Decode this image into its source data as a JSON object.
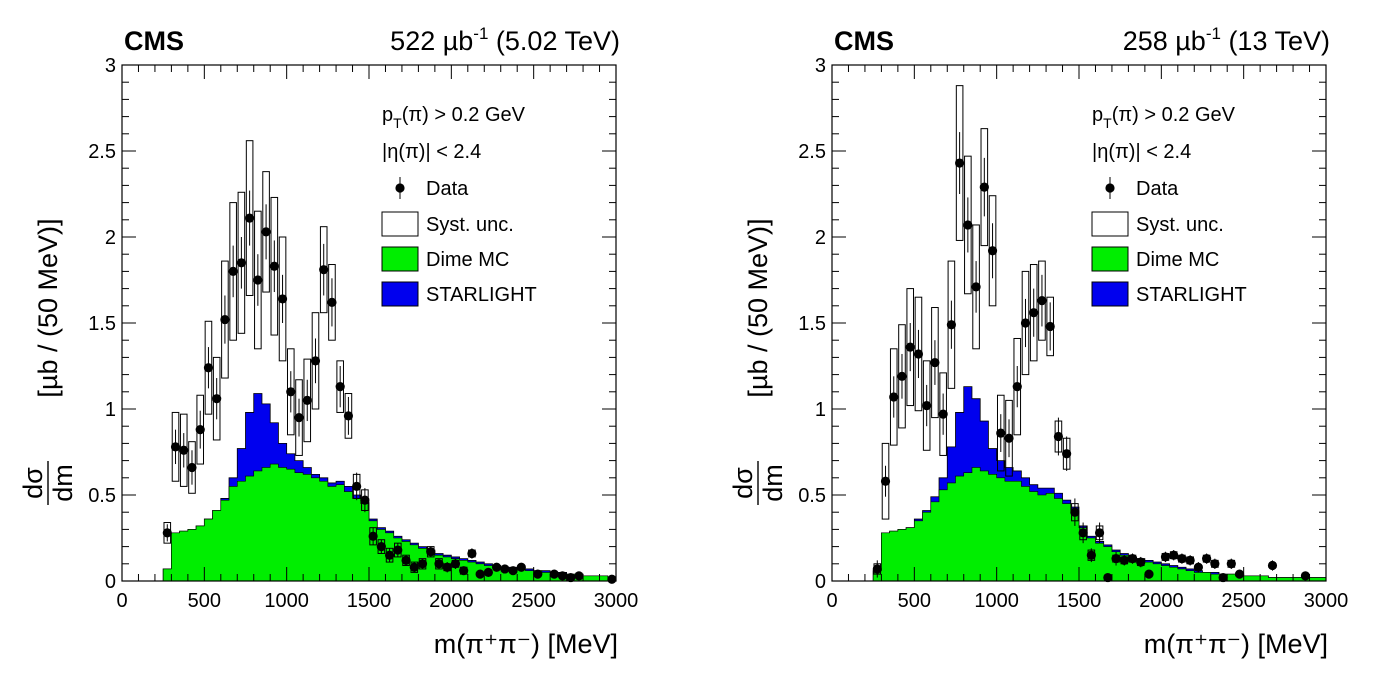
{
  "chart_data": [
    {
      "type": "histogram",
      "experiment": "CMS",
      "luminosity": "522 µb",
      "luminosity_exponent": "-1",
      "energy": "(5.02 TeV)",
      "xlabel": "m(π⁺π⁻) [MeV]",
      "ylabel_numerator": "dσ",
      "ylabel_denominator": "dm",
      "ylabel_units": "[µb / (50 MeV)]",
      "xlim": [
        0,
        3000
      ],
      "ylim": [
        0,
        3
      ],
      "xticks": [
        "0",
        "500",
        "1000",
        "1500",
        "2000",
        "2500",
        "3000"
      ],
      "yticks": [
        "0",
        "0.5",
        "1",
        "1.5",
        "2",
        "2.5",
        "3"
      ],
      "cuts": [
        "p_T(π) > 0.2 GeV",
        "|η(π)| < 2.4"
      ],
      "legend": {
        "position": "top-right",
        "entries": [
          {
            "label": "Data",
            "style": "marker"
          },
          {
            "label": "Syst. unc.",
            "style": "box",
            "color": "#ffffff"
          },
          {
            "label": "Dime MC",
            "style": "fill",
            "color": "#00ee00"
          },
          {
            "label": "STARLIGHT",
            "style": "fill",
            "color": "#0000ee"
          }
        ]
      },
      "mc_bins": {
        "bin_width": 50,
        "edges_start": 250,
        "dime": [
          0.07,
          0.28,
          0.29,
          0.3,
          0.32,
          0.36,
          0.41,
          0.47,
          0.55,
          0.58,
          0.61,
          0.64,
          0.66,
          0.68,
          0.66,
          0.65,
          0.63,
          0.62,
          0.6,
          0.58,
          0.55,
          0.56,
          0.52,
          0.48,
          0.45,
          0.35,
          0.3,
          0.28,
          0.25,
          0.23,
          0.21,
          0.19,
          0.17,
          0.15,
          0.14,
          0.13,
          0.12,
          0.11,
          0.1,
          0.09,
          0.08,
          0.08,
          0.07,
          0.07,
          0.06,
          0.06,
          0.05,
          0.05,
          0.04,
          0.04,
          0.04,
          0.03,
          0.03,
          0.03,
          0.02
        ],
        "total": [
          0.07,
          0.28,
          0.29,
          0.3,
          0.32,
          0.36,
          0.41,
          0.48,
          0.6,
          0.77,
          0.98,
          1.09,
          1.03,
          0.92,
          0.8,
          0.74,
          0.7,
          0.66,
          0.62,
          0.6,
          0.57,
          0.58,
          0.55,
          0.5,
          0.46,
          0.36,
          0.31,
          0.29,
          0.26,
          0.24,
          0.22,
          0.2,
          0.18,
          0.16,
          0.15,
          0.14,
          0.13,
          0.12,
          0.11,
          0.1,
          0.09,
          0.08,
          0.08,
          0.07,
          0.07,
          0.06,
          0.06,
          0.05,
          0.05,
          0.04,
          0.04,
          0.03,
          0.03,
          0.03,
          0.02
        ]
      },
      "data_points": [
        {
          "x": 275,
          "y": 0.28,
          "err": 0.05,
          "syst": 0.06
        },
        {
          "x": 325,
          "y": 0.78,
          "err": 0.1,
          "syst": 0.2
        },
        {
          "x": 375,
          "y": 0.76,
          "err": 0.1,
          "syst": 0.21
        },
        {
          "x": 425,
          "y": 0.66,
          "err": 0.1,
          "syst": 0.15
        },
        {
          "x": 475,
          "y": 0.88,
          "err": 0.11,
          "syst": 0.2
        },
        {
          "x": 525,
          "y": 1.24,
          "err": 0.12,
          "syst": 0.27
        },
        {
          "x": 575,
          "y": 1.06,
          "err": 0.12,
          "syst": 0.24
        },
        {
          "x": 625,
          "y": 1.52,
          "err": 0.14,
          "syst": 0.34
        },
        {
          "x": 675,
          "y": 1.8,
          "err": 0.15,
          "syst": 0.4
        },
        {
          "x": 725,
          "y": 1.85,
          "err": 0.15,
          "syst": 0.41
        },
        {
          "x": 775,
          "y": 2.11,
          "err": 0.16,
          "syst": 0.45
        },
        {
          "x": 825,
          "y": 1.75,
          "err": 0.15,
          "syst": 0.4
        },
        {
          "x": 875,
          "y": 2.03,
          "err": 0.16,
          "syst": 0.35
        },
        {
          "x": 925,
          "y": 1.83,
          "err": 0.15,
          "syst": 0.4
        },
        {
          "x": 975,
          "y": 1.64,
          "err": 0.14,
          "syst": 0.36
        },
        {
          "x": 1025,
          "y": 1.1,
          "err": 0.12,
          "syst": 0.25
        },
        {
          "x": 1075,
          "y": 0.95,
          "err": 0.11,
          "syst": 0.22
        },
        {
          "x": 1125,
          "y": 1.05,
          "err": 0.12,
          "syst": 0.24
        },
        {
          "x": 1175,
          "y": 1.28,
          "err": 0.13,
          "syst": 0.28
        },
        {
          "x": 1225,
          "y": 1.81,
          "err": 0.15,
          "syst": 0.25
        },
        {
          "x": 1275,
          "y": 1.62,
          "err": 0.14,
          "syst": 0.22
        },
        {
          "x": 1325,
          "y": 1.13,
          "err": 0.12,
          "syst": 0.15
        },
        {
          "x": 1375,
          "y": 0.96,
          "err": 0.11,
          "syst": 0.13
        },
        {
          "x": 1425,
          "y": 0.55,
          "err": 0.08,
          "syst": 0.07
        },
        {
          "x": 1475,
          "y": 0.47,
          "err": 0.07,
          "syst": 0.06
        },
        {
          "x": 1525,
          "y": 0.26,
          "err": 0.05,
          "syst": 0.05
        },
        {
          "x": 1575,
          "y": 0.2,
          "err": 0.04,
          "syst": 0.04
        },
        {
          "x": 1625,
          "y": 0.15,
          "err": 0.04,
          "syst": 0.04
        },
        {
          "x": 1675,
          "y": 0.18,
          "err": 0.04,
          "syst": 0.04
        },
        {
          "x": 1725,
          "y": 0.12,
          "err": 0.03,
          "syst": 0.03
        },
        {
          "x": 1775,
          "y": 0.08,
          "err": 0.03,
          "syst": 0.03
        },
        {
          "x": 1825,
          "y": 0.1,
          "err": 0.03,
          "syst": 0.03
        },
        {
          "x": 1875,
          "y": 0.17,
          "err": 0.03,
          "syst": 0.03
        },
        {
          "x": 1925,
          "y": 0.1,
          "err": 0.03,
          "syst": 0.03
        },
        {
          "x": 1975,
          "y": 0.08,
          "err": 0.03,
          "syst": 0.02
        },
        {
          "x": 2025,
          "y": 0.1,
          "err": 0.03,
          "syst": 0.02
        },
        {
          "x": 2075,
          "y": 0.06,
          "err": 0.02,
          "syst": 0.02
        },
        {
          "x": 2125,
          "y": 0.16,
          "err": 0.03,
          "syst": 0.02
        },
        {
          "x": 2175,
          "y": 0.04,
          "err": 0.02,
          "syst": 0.01
        },
        {
          "x": 2225,
          "y": 0.05,
          "err": 0.02,
          "syst": 0.01
        },
        {
          "x": 2275,
          "y": 0.08,
          "err": 0.02,
          "syst": 0.01
        },
        {
          "x": 2325,
          "y": 0.07,
          "err": 0.02,
          "syst": 0.01
        },
        {
          "x": 2375,
          "y": 0.06,
          "err": 0.02,
          "syst": 0.01
        },
        {
          "x": 2425,
          "y": 0.08,
          "err": 0.02,
          "syst": 0.01
        },
        {
          "x": 2525,
          "y": 0.04,
          "err": 0.02,
          "syst": 0.01
        },
        {
          "x": 2625,
          "y": 0.04,
          "err": 0.02,
          "syst": 0.01
        },
        {
          "x": 2675,
          "y": 0.03,
          "err": 0.02,
          "syst": 0.01
        },
        {
          "x": 2725,
          "y": 0.02,
          "err": 0.01,
          "syst": 0.01
        },
        {
          "x": 2775,
          "y": 0.03,
          "err": 0.01,
          "syst": 0.01
        },
        {
          "x": 2975,
          "y": 0.01,
          "err": 0.01,
          "syst": 0.01
        }
      ]
    },
    {
      "type": "histogram",
      "experiment": "CMS",
      "luminosity": "258 µb",
      "luminosity_exponent": "-1",
      "energy": "(13 TeV)",
      "xlabel": "m(π⁺π⁻) [MeV]",
      "ylabel_numerator": "dσ",
      "ylabel_denominator": "dm",
      "ylabel_units": "[µb / (50 MeV)]",
      "xlim": [
        0,
        3000
      ],
      "ylim": [
        0,
        3
      ],
      "xticks": [
        "0",
        "500",
        "1000",
        "1500",
        "2000",
        "2500",
        "3000"
      ],
      "yticks": [
        "0",
        "0.5",
        "1",
        "1.5",
        "2",
        "2.5",
        "3"
      ],
      "cuts": [
        "p_T(π) > 0.2 GeV",
        "|η(π)| < 2.4"
      ],
      "legend": {
        "position": "top-right",
        "entries": [
          {
            "label": "Data",
            "style": "marker"
          },
          {
            "label": "Syst. unc.",
            "style": "box",
            "color": "#ffffff"
          },
          {
            "label": "Dime MC",
            "style": "fill",
            "color": "#00ee00"
          },
          {
            "label": "STARLIGHT",
            "style": "fill",
            "color": "#0000ee"
          }
        ]
      },
      "mc_bins": {
        "bin_width": 50,
        "edges_start": 250,
        "dime": [
          0.06,
          0.28,
          0.29,
          0.3,
          0.31,
          0.35,
          0.4,
          0.46,
          0.53,
          0.57,
          0.61,
          0.63,
          0.66,
          0.64,
          0.62,
          0.6,
          0.58,
          0.58,
          0.55,
          0.52,
          0.5,
          0.51,
          0.48,
          0.45,
          0.41,
          0.31,
          0.25,
          0.22,
          0.2,
          0.17,
          0.15,
          0.13,
          0.12,
          0.11,
          0.1,
          0.09,
          0.08,
          0.07,
          0.06,
          0.05,
          0.05,
          0.04,
          0.04,
          0.04,
          0.03,
          0.03,
          0.03,
          0.03,
          0.02,
          0.02,
          0.02,
          0.02,
          0.02,
          0.02,
          0.02
        ],
        "total": [
          0.06,
          0.28,
          0.29,
          0.3,
          0.31,
          0.36,
          0.41,
          0.49,
          0.6,
          0.78,
          0.98,
          1.13,
          1.06,
          0.93,
          0.77,
          0.7,
          0.66,
          0.64,
          0.6,
          0.56,
          0.54,
          0.54,
          0.51,
          0.47,
          0.43,
          0.32,
          0.26,
          0.23,
          0.21,
          0.18,
          0.16,
          0.14,
          0.13,
          0.12,
          0.11,
          0.1,
          0.09,
          0.08,
          0.07,
          0.06,
          0.05,
          0.05,
          0.04,
          0.04,
          0.04,
          0.03,
          0.03,
          0.03,
          0.02,
          0.02,
          0.02,
          0.02,
          0.02,
          0.02,
          0.02
        ]
      },
      "data_points": [
        {
          "x": 275,
          "y": 0.07,
          "err": 0.05,
          "syst": 0.03
        },
        {
          "x": 325,
          "y": 0.58,
          "err": 0.09,
          "syst": 0.22
        },
        {
          "x": 375,
          "y": 1.07,
          "err": 0.12,
          "syst": 0.28
        },
        {
          "x": 425,
          "y": 1.19,
          "err": 0.13,
          "syst": 0.3
        },
        {
          "x": 475,
          "y": 1.36,
          "err": 0.14,
          "syst": 0.34
        },
        {
          "x": 525,
          "y": 1.32,
          "err": 0.14,
          "syst": 0.33
        },
        {
          "x": 575,
          "y": 1.02,
          "err": 0.12,
          "syst": 0.26
        },
        {
          "x": 625,
          "y": 1.27,
          "err": 0.13,
          "syst": 0.32
        },
        {
          "x": 675,
          "y": 0.97,
          "err": 0.12,
          "syst": 0.24
        },
        {
          "x": 725,
          "y": 1.49,
          "err": 0.14,
          "syst": 0.37
        },
        {
          "x": 775,
          "y": 2.43,
          "err": 0.18,
          "syst": 0.45
        },
        {
          "x": 825,
          "y": 2.07,
          "err": 0.16,
          "syst": 0.4
        },
        {
          "x": 875,
          "y": 1.71,
          "err": 0.15,
          "syst": 0.36
        },
        {
          "x": 925,
          "y": 2.29,
          "err": 0.17,
          "syst": 0.34
        },
        {
          "x": 975,
          "y": 1.92,
          "err": 0.16,
          "syst": 0.32
        },
        {
          "x": 1025,
          "y": 0.86,
          "err": 0.11,
          "syst": 0.22
        },
        {
          "x": 1075,
          "y": 0.83,
          "err": 0.11,
          "syst": 0.22
        },
        {
          "x": 1125,
          "y": 1.13,
          "err": 0.12,
          "syst": 0.28
        },
        {
          "x": 1175,
          "y": 1.5,
          "err": 0.14,
          "syst": 0.3
        },
        {
          "x": 1225,
          "y": 1.56,
          "err": 0.14,
          "syst": 0.28
        },
        {
          "x": 1275,
          "y": 1.63,
          "err": 0.15,
          "syst": 0.23
        },
        {
          "x": 1325,
          "y": 1.48,
          "err": 0.14,
          "syst": 0.17
        },
        {
          "x": 1375,
          "y": 0.84,
          "err": 0.11,
          "syst": 0.09
        },
        {
          "x": 1425,
          "y": 0.74,
          "err": 0.1,
          "syst": 0.09
        },
        {
          "x": 1475,
          "y": 0.4,
          "err": 0.08,
          "syst": 0.05
        },
        {
          "x": 1525,
          "y": 0.28,
          "err": 0.06,
          "syst": 0.04
        },
        {
          "x": 1575,
          "y": 0.15,
          "err": 0.04,
          "syst": 0.03
        },
        {
          "x": 1625,
          "y": 0.28,
          "err": 0.06,
          "syst": 0.04
        },
        {
          "x": 1675,
          "y": 0.02,
          "err": 0.02,
          "syst": 0.01
        },
        {
          "x": 1725,
          "y": 0.13,
          "err": 0.04,
          "syst": 0.02
        },
        {
          "x": 1775,
          "y": 0.12,
          "err": 0.03,
          "syst": 0.02
        },
        {
          "x": 1825,
          "y": 0.13,
          "err": 0.03,
          "syst": 0.02
        },
        {
          "x": 1875,
          "y": 0.11,
          "err": 0.03,
          "syst": 0.02
        },
        {
          "x": 1925,
          "y": 0.04,
          "err": 0.02,
          "syst": 0.01
        },
        {
          "x": 2025,
          "y": 0.14,
          "err": 0.03,
          "syst": 0.02
        },
        {
          "x": 2075,
          "y": 0.15,
          "err": 0.03,
          "syst": 0.02
        },
        {
          "x": 2125,
          "y": 0.13,
          "err": 0.03,
          "syst": 0.02
        },
        {
          "x": 2175,
          "y": 0.12,
          "err": 0.03,
          "syst": 0.02
        },
        {
          "x": 2225,
          "y": 0.08,
          "err": 0.03,
          "syst": 0.01
        },
        {
          "x": 2275,
          "y": 0.13,
          "err": 0.03,
          "syst": 0.02
        },
        {
          "x": 2325,
          "y": 0.1,
          "err": 0.03,
          "syst": 0.02
        },
        {
          "x": 2375,
          "y": 0.02,
          "err": 0.02,
          "syst": 0.01
        },
        {
          "x": 2425,
          "y": 0.1,
          "err": 0.03,
          "syst": 0.02
        },
        {
          "x": 2475,
          "y": 0.04,
          "err": 0.02,
          "syst": 0.01
        },
        {
          "x": 2675,
          "y": 0.09,
          "err": 0.03,
          "syst": 0.01
        },
        {
          "x": 2875,
          "y": 0.03,
          "err": 0.02,
          "syst": 0.01
        }
      ]
    }
  ]
}
